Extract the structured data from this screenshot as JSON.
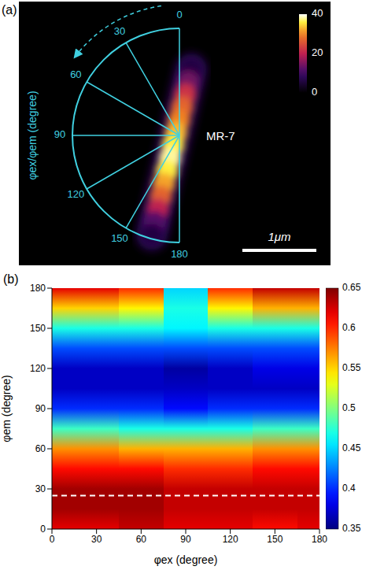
{
  "chart_data": [
    {
      "type": "image",
      "panel": "(a)",
      "label": "MR-7",
      "scale_bar": "1μm",
      "angle_axis": {
        "title": "φex/φem (degree)",
        "ticks": [
          0,
          30,
          60,
          90,
          120,
          150,
          180
        ]
      },
      "rod_profile": [
        6,
        14,
        22,
        27,
        30,
        33,
        36,
        38,
        36,
        32,
        27,
        20,
        12,
        6
      ],
      "colorbar": {
        "range": [
          0,
          40
        ],
        "ticks": [
          0,
          20,
          40
        ]
      }
    },
    {
      "type": "heatmap",
      "panel": "(b)",
      "x_label": "φex (degree)",
      "y_label": "φem (degree)",
      "x": [
        0,
        30,
        60,
        90,
        120,
        150,
        180
      ],
      "y": [
        0,
        15,
        30,
        45,
        60,
        75,
        90,
        105,
        120,
        135,
        150,
        165,
        180
      ],
      "cells": [
        [
          0.62,
          0.62,
          0.63,
          0.62,
          0.62,
          0.61,
          0.62
        ],
        [
          0.64,
          0.64,
          0.64,
          0.63,
          0.63,
          0.63,
          0.63
        ],
        [
          0.64,
          0.64,
          0.64,
          0.63,
          0.63,
          0.63,
          0.63
        ],
        [
          0.61,
          0.61,
          0.61,
          0.6,
          0.6,
          0.61,
          0.61
        ],
        [
          0.57,
          0.57,
          0.56,
          0.56,
          0.56,
          0.57,
          0.57
        ],
        [
          0.48,
          0.48,
          0.47,
          0.47,
          0.47,
          0.48,
          0.48
        ],
        [
          0.4,
          0.4,
          0.4,
          0.39,
          0.4,
          0.4,
          0.4
        ],
        [
          0.37,
          0.37,
          0.37,
          0.37,
          0.37,
          0.37,
          0.37
        ],
        [
          0.37,
          0.37,
          0.37,
          0.36,
          0.37,
          0.38,
          0.38
        ],
        [
          0.41,
          0.41,
          0.41,
          0.41,
          0.41,
          0.41,
          0.41
        ],
        [
          0.47,
          0.47,
          0.47,
          0.46,
          0.47,
          0.47,
          0.47
        ],
        [
          0.55,
          0.55,
          0.54,
          0.47,
          0.54,
          0.56,
          0.56
        ],
        [
          0.62,
          0.62,
          0.6,
          0.45,
          0.6,
          0.63,
          0.63
        ]
      ],
      "xlim": [
        0,
        180
      ],
      "xticks": [
        0,
        30,
        60,
        90,
        120,
        150,
        180
      ],
      "ylim": [
        0,
        180
      ],
      "yticks": [
        0,
        30,
        60,
        90,
        120,
        150,
        180
      ],
      "colorbar": {
        "range": [
          0.35,
          0.65
        ],
        "ticks": [
          0.35,
          0.4,
          0.45,
          0.5,
          0.55,
          0.6,
          0.65
        ]
      },
      "reference_line": {
        "y": 25,
        "color": "#ffffff",
        "line_style": "dashed"
      }
    }
  ]
}
